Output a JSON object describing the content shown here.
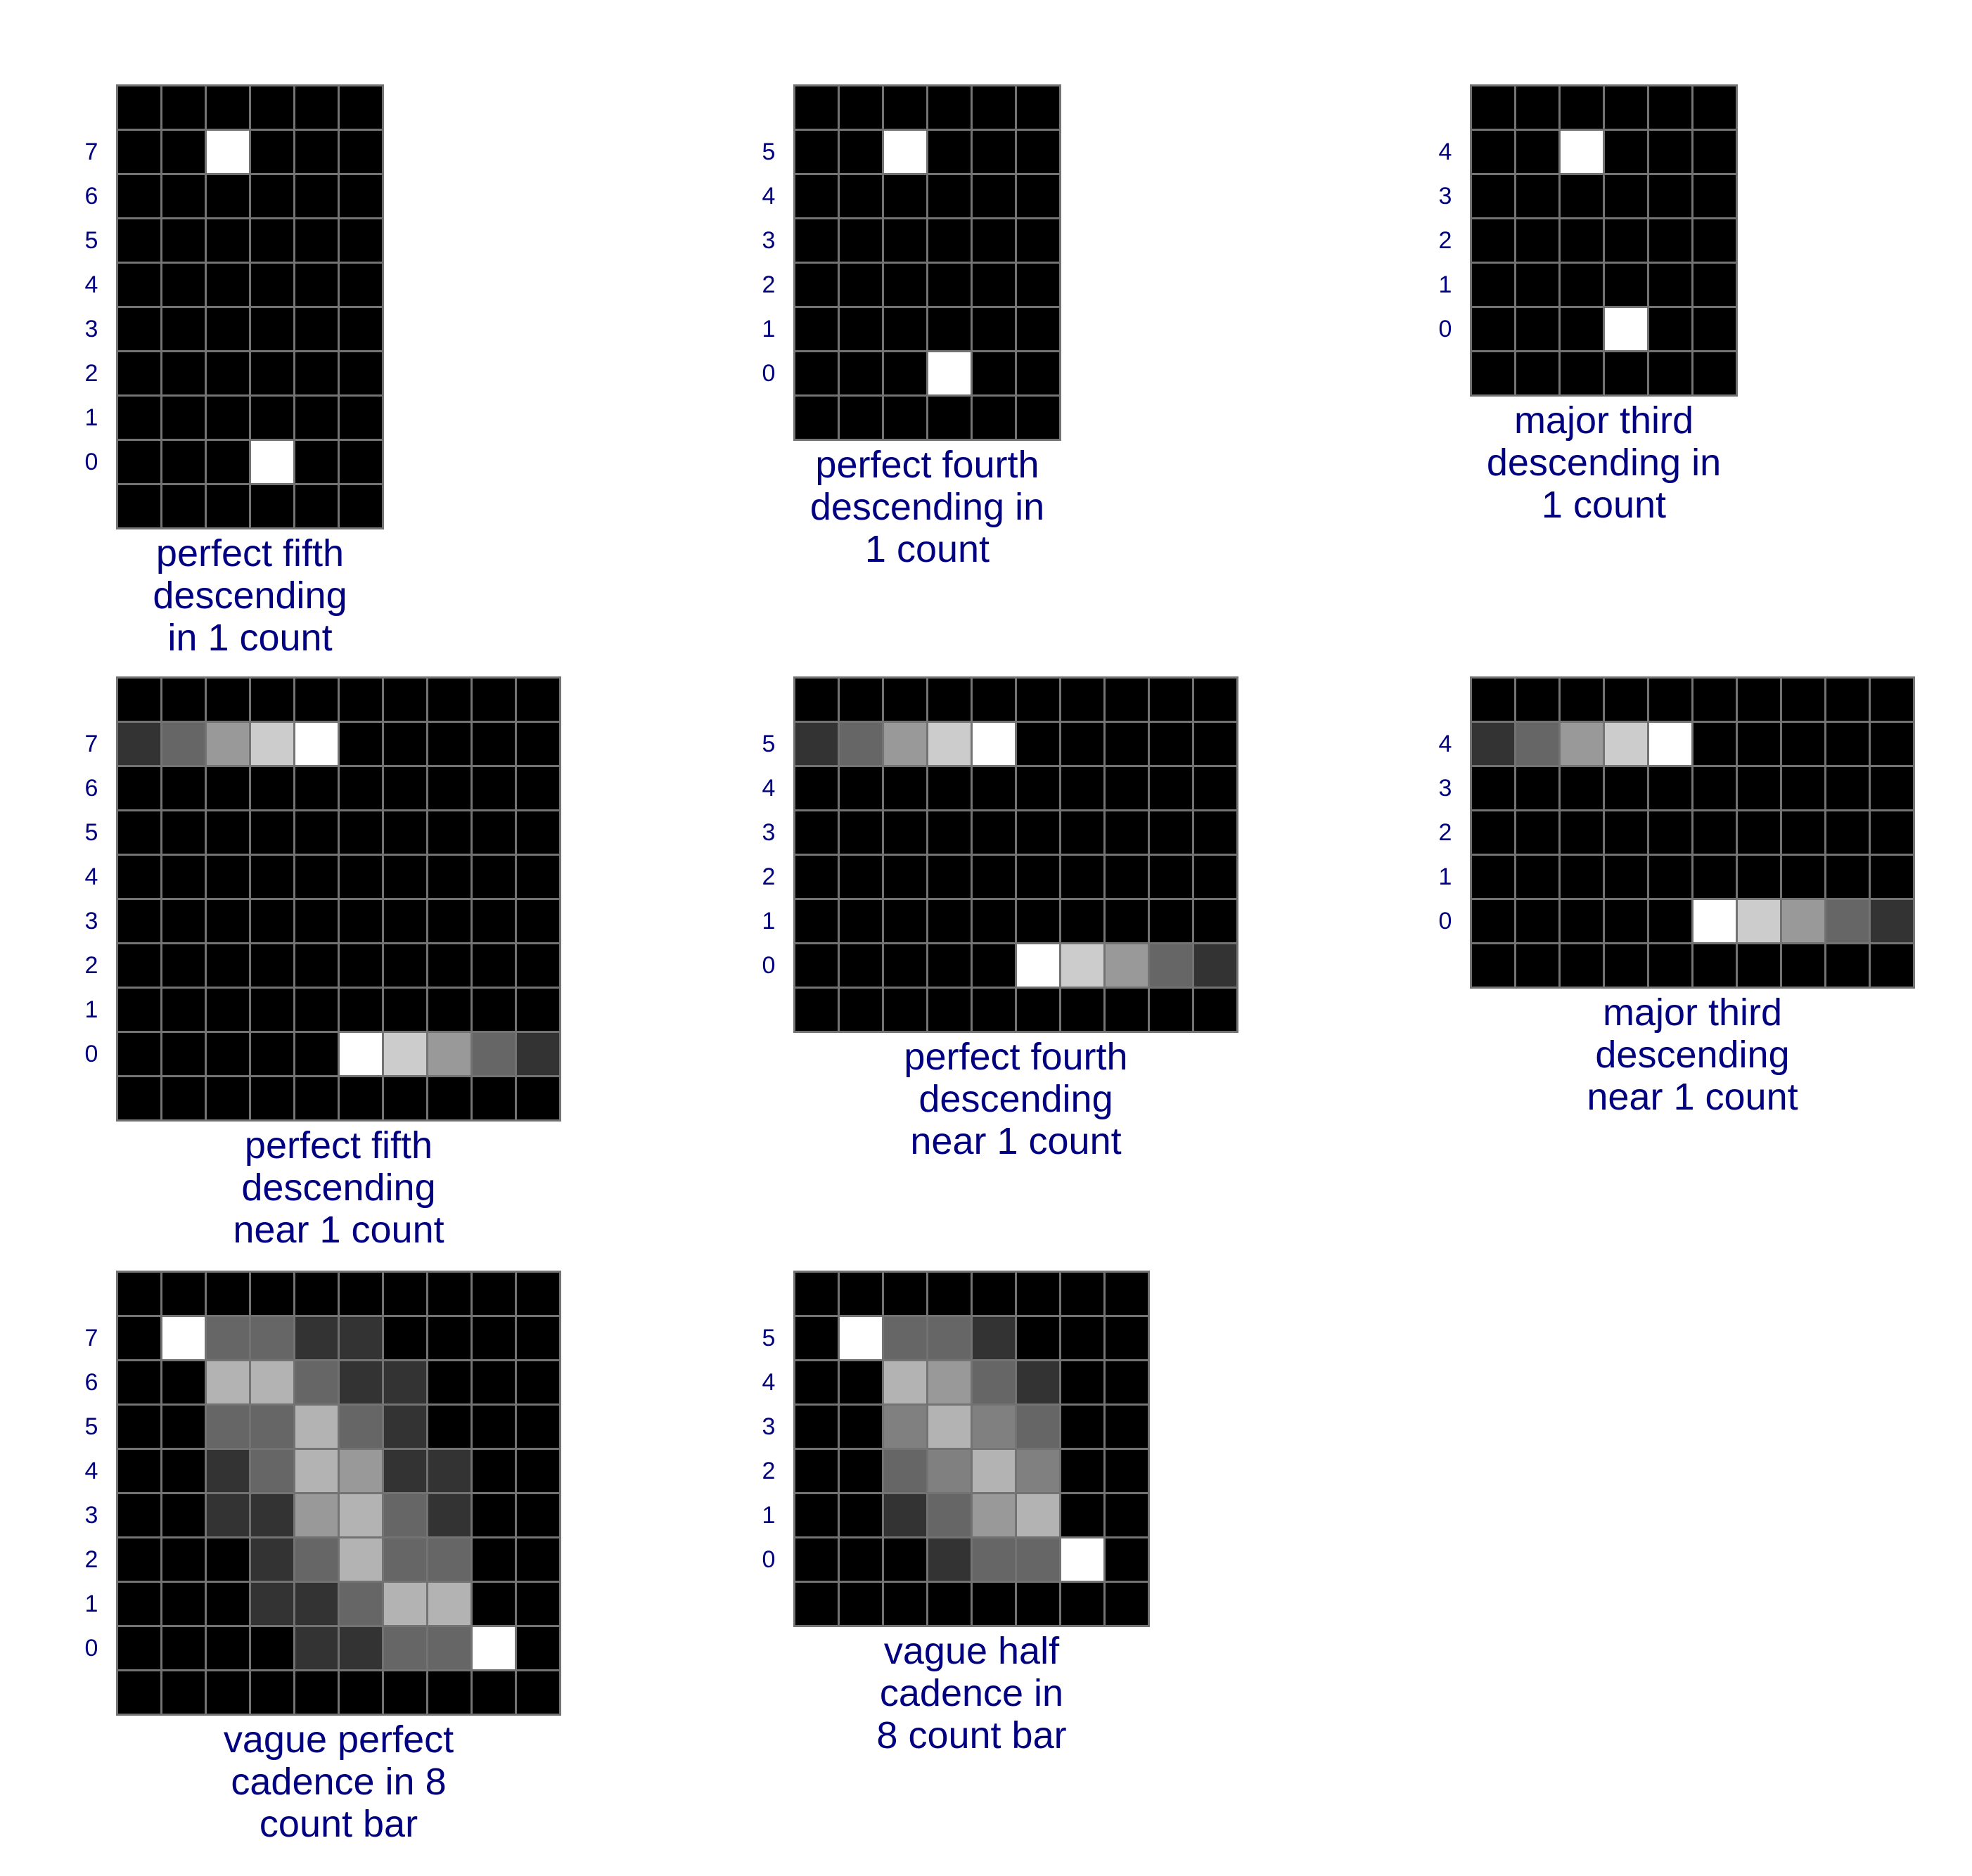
{
  "diagram": {
    "text_color": "#000080",
    "cell_color": "#000000",
    "grid_line_color": "#737373",
    "panels": [
      {
        "caption": "perfect fifth descending in 1 count",
        "caption_lines": [
          "perfect fifth",
          "descending",
          "in 1 count"
        ],
        "columns": 6,
        "rows": 10,
        "row_labels": [
          "",
          "7",
          "6",
          "5",
          "4",
          "3",
          "2",
          "1",
          "0",
          ""
        ],
        "cells": [
          [
            0,
            0,
            0,
            0,
            0,
            0
          ],
          [
            0,
            0,
            1,
            0,
            0,
            0
          ],
          [
            0,
            0,
            0,
            0,
            0,
            0
          ],
          [
            0,
            0,
            0,
            0,
            0,
            0
          ],
          [
            0,
            0,
            0,
            0,
            0,
            0
          ],
          [
            0,
            0,
            0,
            0,
            0,
            0
          ],
          [
            0,
            0,
            0,
            0,
            0,
            0
          ],
          [
            0,
            0,
            0,
            0,
            0,
            0
          ],
          [
            0,
            0,
            0,
            1,
            0,
            0
          ],
          [
            0,
            0,
            0,
            0,
            0,
            0
          ]
        ]
      },
      {
        "caption": "perfect fourth descending in 1 count",
        "caption_lines": [
          "perfect fourth",
          "descending in",
          "1 count"
        ],
        "columns": 6,
        "rows": 8,
        "row_labels": [
          "",
          "5",
          "4",
          "3",
          "2",
          "1",
          "0",
          ""
        ],
        "cells": [
          [
            0,
            0,
            0,
            0,
            0,
            0
          ],
          [
            0,
            0,
            1,
            0,
            0,
            0
          ],
          [
            0,
            0,
            0,
            0,
            0,
            0
          ],
          [
            0,
            0,
            0,
            0,
            0,
            0
          ],
          [
            0,
            0,
            0,
            0,
            0,
            0
          ],
          [
            0,
            0,
            0,
            0,
            0,
            0
          ],
          [
            0,
            0,
            0,
            1,
            0,
            0
          ],
          [
            0,
            0,
            0,
            0,
            0,
            0
          ]
        ]
      },
      {
        "caption": "major third descending in 1 count",
        "caption_lines": [
          "major third",
          "descending in",
          "1 count"
        ],
        "columns": 6,
        "rows": 7,
        "row_labels": [
          "",
          "4",
          "3",
          "2",
          "1",
          "0",
          ""
        ],
        "cells": [
          [
            0,
            0,
            0,
            0,
            0,
            0
          ],
          [
            0,
            0,
            1,
            0,
            0,
            0
          ],
          [
            0,
            0,
            0,
            0,
            0,
            0
          ],
          [
            0,
            0,
            0,
            0,
            0,
            0
          ],
          [
            0,
            0,
            0,
            0,
            0,
            0
          ],
          [
            0,
            0,
            0,
            1,
            0,
            0
          ],
          [
            0,
            0,
            0,
            0,
            0,
            0
          ]
        ]
      },
      {
        "caption": "perfect fifth descending near 1 count",
        "caption_lines": [
          "perfect fifth",
          "descending",
          "near 1 count"
        ],
        "columns": 10,
        "rows": 10,
        "row_labels": [
          "",
          "7",
          "6",
          "5",
          "4",
          "3",
          "2",
          "1",
          "0",
          ""
        ],
        "cells": [
          [
            0,
            0,
            0,
            0,
            0,
            0,
            0,
            0,
            0,
            0
          ],
          [
            0.2,
            0.4,
            0.6,
            0.8,
            1,
            0,
            0,
            0,
            0,
            0
          ],
          [
            0,
            0,
            0,
            0,
            0,
            0,
            0,
            0,
            0,
            0
          ],
          [
            0,
            0,
            0,
            0,
            0,
            0,
            0,
            0,
            0,
            0
          ],
          [
            0,
            0,
            0,
            0,
            0,
            0,
            0,
            0,
            0,
            0
          ],
          [
            0,
            0,
            0,
            0,
            0,
            0,
            0,
            0,
            0,
            0
          ],
          [
            0,
            0,
            0,
            0,
            0,
            0,
            0,
            0,
            0,
            0
          ],
          [
            0,
            0,
            0,
            0,
            0,
            0,
            0,
            0,
            0,
            0
          ],
          [
            0,
            0,
            0,
            0,
            0,
            1,
            0.8,
            0.6,
            0.4,
            0.2
          ],
          [
            0,
            0,
            0,
            0,
            0,
            0,
            0,
            0,
            0,
            0
          ]
        ]
      },
      {
        "caption": "perfect fourth descending near 1 count",
        "caption_lines": [
          "perfect fourth",
          "descending",
          "near 1 count"
        ],
        "columns": 10,
        "rows": 8,
        "row_labels": [
          "",
          "5",
          "4",
          "3",
          "2",
          "1",
          "0",
          ""
        ],
        "cells": [
          [
            0,
            0,
            0,
            0,
            0,
            0,
            0,
            0,
            0,
            0
          ],
          [
            0.2,
            0.4,
            0.6,
            0.8,
            1,
            0,
            0,
            0,
            0,
            0
          ],
          [
            0,
            0,
            0,
            0,
            0,
            0,
            0,
            0,
            0,
            0
          ],
          [
            0,
            0,
            0,
            0,
            0,
            0,
            0,
            0,
            0,
            0
          ],
          [
            0,
            0,
            0,
            0,
            0,
            0,
            0,
            0,
            0,
            0
          ],
          [
            0,
            0,
            0,
            0,
            0,
            0,
            0,
            0,
            0,
            0
          ],
          [
            0,
            0,
            0,
            0,
            0,
            1,
            0.8,
            0.6,
            0.4,
            0.2
          ],
          [
            0,
            0,
            0,
            0,
            0,
            0,
            0,
            0,
            0,
            0
          ]
        ]
      },
      {
        "caption": "major third descending near 1 count",
        "caption_lines": [
          "major third",
          "descending",
          "near 1 count"
        ],
        "columns": 10,
        "rows": 7,
        "row_labels": [
          "",
          "4",
          "3",
          "2",
          "1",
          "0",
          ""
        ],
        "cells": [
          [
            0,
            0,
            0,
            0,
            0,
            0,
            0,
            0,
            0,
            0
          ],
          [
            0.2,
            0.4,
            0.6,
            0.8,
            1,
            0,
            0,
            0,
            0,
            0
          ],
          [
            0,
            0,
            0,
            0,
            0,
            0,
            0,
            0,
            0,
            0
          ],
          [
            0,
            0,
            0,
            0,
            0,
            0,
            0,
            0,
            0,
            0
          ],
          [
            0,
            0,
            0,
            0,
            0,
            0,
            0,
            0,
            0,
            0
          ],
          [
            0,
            0,
            0,
            0,
            0,
            1,
            0.8,
            0.6,
            0.4,
            0.2
          ],
          [
            0,
            0,
            0,
            0,
            0,
            0,
            0,
            0,
            0,
            0
          ]
        ]
      },
      {
        "caption": "vague perfect cadence in 8 count bar",
        "caption_lines": [
          "vague perfect",
          "cadence in 8",
          "count bar"
        ],
        "columns": 10,
        "rows": 10,
        "row_labels": [
          "",
          "7",
          "6",
          "5",
          "4",
          "3",
          "2",
          "1",
          "0",
          ""
        ],
        "cells": [
          [
            0,
            0,
            0,
            0,
            0,
            0,
            0,
            0,
            0,
            0
          ],
          [
            0,
            1,
            0.4,
            0.4,
            0.2,
            0.2,
            0,
            0,
            0,
            0
          ],
          [
            0,
            0,
            0.7,
            0.7,
            0.4,
            0.2,
            0.2,
            0,
            0,
            0
          ],
          [
            0,
            0,
            0.4,
            0.4,
            0.7,
            0.4,
            0.2,
            0,
            0,
            0
          ],
          [
            0,
            0,
            0.2,
            0.4,
            0.7,
            0.6,
            0.2,
            0.2,
            0,
            0
          ],
          [
            0,
            0,
            0.2,
            0.2,
            0.6,
            0.7,
            0.4,
            0.2,
            0,
            0
          ],
          [
            0,
            0,
            0,
            0.2,
            0.4,
            0.7,
            0.4,
            0.4,
            0,
            0
          ],
          [
            0,
            0,
            0,
            0.2,
            0.2,
            0.4,
            0.7,
            0.7,
            0,
            0
          ],
          [
            0,
            0,
            0,
            0,
            0.2,
            0.2,
            0.4,
            0.4,
            1,
            0
          ],
          [
            0,
            0,
            0,
            0,
            0,
            0,
            0,
            0,
            0,
            0
          ]
        ]
      },
      {
        "caption": "vague half cadence in 8 count bar",
        "caption_lines": [
          "vague half",
          "cadence in",
          "8 count bar"
        ],
        "columns": 8,
        "rows": 8,
        "row_labels": [
          "",
          "5",
          "4",
          "3",
          "2",
          "1",
          "0",
          ""
        ],
        "cells": [
          [
            0,
            0,
            0,
            0,
            0,
            0,
            0,
            0
          ],
          [
            0,
            1,
            0.4,
            0.4,
            0.2,
            0,
            0,
            0
          ],
          [
            0,
            0,
            0.7,
            0.6,
            0.4,
            0.2,
            0,
            0
          ],
          [
            0,
            0,
            0.5,
            0.7,
            0.5,
            0.4,
            0,
            0
          ],
          [
            0,
            0,
            0.4,
            0.5,
            0.7,
            0.5,
            0,
            0
          ],
          [
            0,
            0,
            0.2,
            0.4,
            0.6,
            0.7,
            0,
            0
          ],
          [
            0,
            0,
            0,
            0.2,
            0.4,
            0.4,
            1,
            0
          ],
          [
            0,
            0,
            0,
            0,
            0,
            0,
            0,
            0
          ]
        ]
      }
    ]
  }
}
